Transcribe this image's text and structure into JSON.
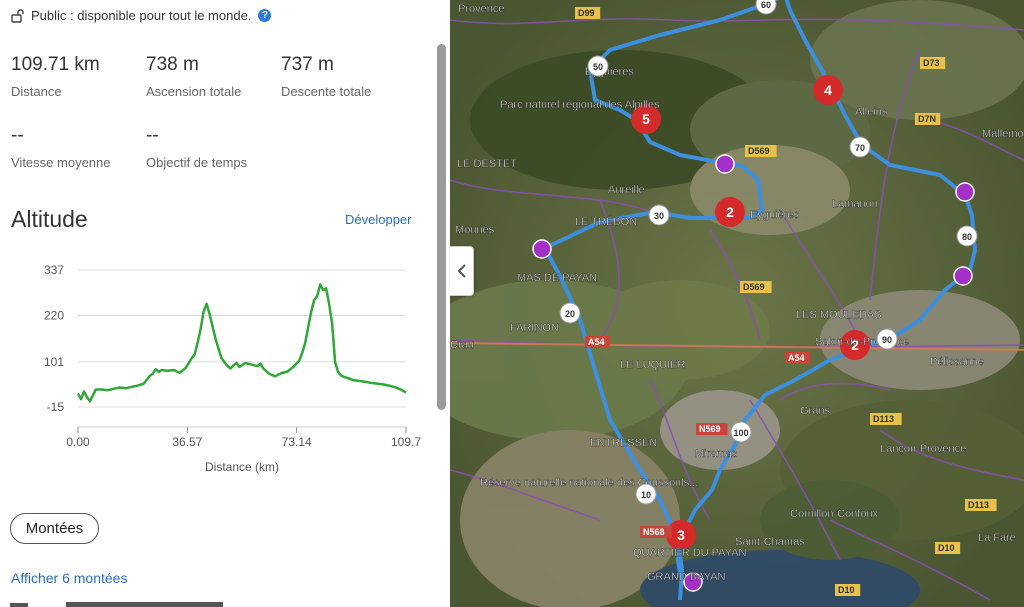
{
  "visibility": {
    "icon": "unlock-icon",
    "text": "Public : disponible pour tout le monde.",
    "help_icon": "help-icon",
    "help_glyph": "?"
  },
  "stats": {
    "distance": {
      "value": "109.71 km",
      "label": "Distance"
    },
    "ascent": {
      "value": "738 m",
      "label": "Ascension totale"
    },
    "descent": {
      "value": "737 m",
      "label": "Descente totale"
    },
    "speed": {
      "value": "--",
      "label": "Vitesse moyenne"
    },
    "time_goal": {
      "value": "--",
      "label": "Objectif de temps"
    }
  },
  "altitude": {
    "title": "Altitude",
    "expand_label": "Développer"
  },
  "chart_data": {
    "type": "line",
    "title": "",
    "xlabel": "Distance (km)",
    "ylabel": "",
    "xlim": [
      0,
      109.71
    ],
    "ylim": [
      -15,
      337
    ],
    "yticks": [
      "337",
      "220",
      "101",
      "-15"
    ],
    "ytick_values": [
      337,
      220,
      101,
      -15
    ],
    "xticks": [
      "0.00",
      "36.57",
      "73.14",
      "109.7"
    ],
    "xtick_values": [
      0,
      36.57,
      73.14,
      109.71
    ],
    "grid": true,
    "color": "#2ea836",
    "series": [
      {
        "x": [
          0,
          1,
          2,
          3,
          4,
          5,
          6,
          8,
          10,
          12,
          14,
          16,
          18,
          20,
          22,
          24,
          25,
          26,
          27,
          28,
          30,
          32,
          34,
          36,
          38,
          39,
          40,
          41,
          42,
          43,
          44,
          46,
          48,
          50,
          51,
          52,
          53,
          54,
          56,
          58,
          60,
          61,
          62,
          64,
          66,
          68,
          70,
          72,
          74,
          75,
          76,
          77,
          78,
          79,
          80,
          81,
          82,
          83,
          84,
          85,
          86,
          87,
          88,
          89,
          90,
          92,
          94,
          96,
          98,
          100,
          102,
          104,
          106,
          108,
          109.71
        ],
        "y": [
          20,
          5,
          25,
          10,
          0,
          15,
          30,
          30,
          28,
          32,
          35,
          33,
          37,
          40,
          45,
          65,
          70,
          82,
          75,
          80,
          78,
          80,
          73,
          85,
          110,
          120,
          150,
          185,
          230,
          250,
          225,
          160,
          110,
          90,
          84,
          92,
          98,
          88,
          98,
          94,
          90,
          96,
          84,
          70,
          64,
          72,
          76,
          88,
          104,
          124,
          150,
          190,
          230,
          260,
          270,
          300,
          285,
          290,
          250,
          200,
          100,
          75,
          66,
          62,
          60,
          54,
          52,
          50,
          47,
          45,
          43,
          40,
          36,
          30,
          22
        ]
      }
    ]
  },
  "climbs_button": "Montées",
  "show_climbs_link": "Afficher 6 montées",
  "collapse_icon": "chevron-left-icon",
  "map": {
    "route_color": "#3d8fe0",
    "marker_color": "#d42a2a",
    "climb_color": "#a530c8",
    "place_labels": [
      "Provence",
      "Eyguières",
      "Parc naturel régional des Alpilles",
      "LE DESTET",
      "Aureille",
      "LE TRÉBON",
      "Eyguières",
      "Lamanon",
      "Mouriès",
      "MAS DE PAYAN",
      "FARINON",
      "LES MOULEDAS",
      "Salon-de-Provence",
      "Pélissanne",
      "Grans",
      "Lançon-Provence",
      "LE LUQUIER",
      "ENTRESSEN",
      "Miramas",
      "Réserve naturelle nationale des Coussouls...",
      "Cornillon-Confoux",
      "Saint-Chamas",
      "QUARTIER DU PAYAN",
      "GRAND BAYAN",
      "La Fare",
      "Mallemort",
      "Alleins",
      "Crau"
    ],
    "road_labels": [
      "D99",
      "D7N",
      "D569",
      "D569",
      "A54",
      "A54",
      "N569",
      "N568",
      "D113",
      "D113",
      "D10",
      "D10",
      "D73"
    ],
    "km_markers": [
      "10",
      "20",
      "30",
      "50",
      "60",
      "70",
      "80",
      "90",
      "100"
    ],
    "waypoints": [
      "2",
      "2",
      "3",
      "4",
      "5"
    ]
  }
}
